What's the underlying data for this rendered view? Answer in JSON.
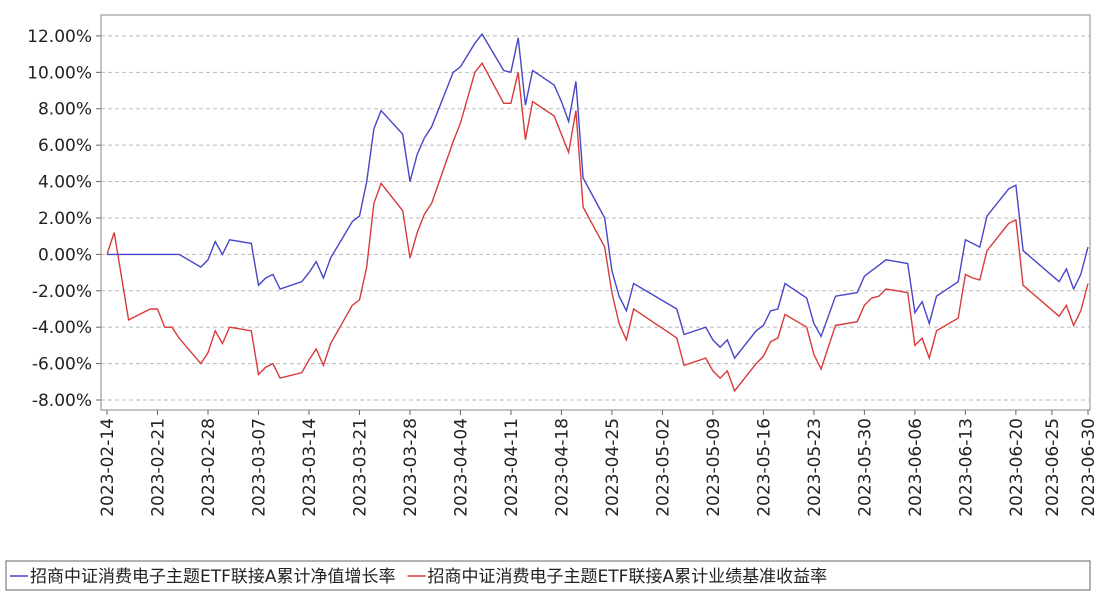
{
  "chart_data": {
    "type": "line",
    "x": [
      "2023-02-14",
      "2023-02-15",
      "2023-02-16",
      "2023-02-17",
      "2023-02-20",
      "2023-02-21",
      "2023-02-22",
      "2023-02-23",
      "2023-02-24",
      "2023-02-27",
      "2023-02-28",
      "2023-03-01",
      "2023-03-02",
      "2023-03-03",
      "2023-03-06",
      "2023-03-07",
      "2023-03-08",
      "2023-03-09",
      "2023-03-10",
      "2023-03-13",
      "2023-03-14",
      "2023-03-15",
      "2023-03-16",
      "2023-03-17",
      "2023-03-20",
      "2023-03-21",
      "2023-03-22",
      "2023-03-23",
      "2023-03-24",
      "2023-03-27",
      "2023-03-28",
      "2023-03-29",
      "2023-03-30",
      "2023-03-31",
      "2023-04-03",
      "2023-04-04",
      "2023-04-06",
      "2023-04-07",
      "2023-04-10",
      "2023-04-11",
      "2023-04-12",
      "2023-04-13",
      "2023-04-14",
      "2023-04-17",
      "2023-04-18",
      "2023-04-19",
      "2023-04-20",
      "2023-04-21",
      "2023-04-24",
      "2023-04-25",
      "2023-04-26",
      "2023-04-27",
      "2023-04-28",
      "2023-05-04",
      "2023-05-05",
      "2023-05-08",
      "2023-05-09",
      "2023-05-10",
      "2023-05-11",
      "2023-05-12",
      "2023-05-15",
      "2023-05-16",
      "2023-05-17",
      "2023-05-18",
      "2023-05-19",
      "2023-05-22",
      "2023-05-23",
      "2023-05-24",
      "2023-05-25",
      "2023-05-26",
      "2023-05-29",
      "2023-05-30",
      "2023-05-31",
      "2023-06-01",
      "2023-06-02",
      "2023-06-05",
      "2023-06-06",
      "2023-06-07",
      "2023-06-08",
      "2023-06-09",
      "2023-06-12",
      "2023-06-13",
      "2023-06-14",
      "2023-06-15",
      "2023-06-16",
      "2023-06-19",
      "2023-06-20",
      "2023-06-21",
      "2023-06-26",
      "2023-06-27",
      "2023-06-28",
      "2023-06-29",
      "2023-06-30"
    ],
    "series": [
      {
        "name": "招商中证消费电子主题ETF联接A累计净值增长率",
        "color": "#4646c8",
        "values": [
          0,
          0,
          0,
          0,
          0,
          0,
          0,
          0,
          0,
          -0.7,
          -0.3,
          0.7,
          0,
          0.8,
          0.6,
          -1.7,
          -1.3,
          -1.1,
          -1.9,
          -1.5,
          -1.0,
          -0.4,
          -1.3,
          -0.2,
          1.8,
          2.1,
          4.0,
          6.9,
          7.9,
          6.6,
          4.0,
          5.5,
          6.4,
          7.0,
          10.0,
          10.3,
          11.6,
          12.1,
          10.1,
          10.0,
          11.9,
          8.2,
          10.1,
          9.3,
          8.4,
          7.3,
          9.5,
          4.2,
          2.0,
          -0.9,
          -2.3,
          -3.1,
          -1.6,
          -3.0,
          -4.4,
          -4.0,
          -4.7,
          -5.1,
          -4.7,
          -5.7,
          -4.2,
          -3.9,
          -3.1,
          -3.0,
          -1.6,
          -2.4,
          -3.8,
          -4.5,
          -3.4,
          -2.3,
          -2.1,
          -1.2,
          -0.9,
          -0.6,
          -0.3,
          -0.5,
          -3.2,
          -2.6,
          -3.8,
          -2.3,
          -1.5,
          0.8,
          0.6,
          0.4,
          2.1,
          3.6,
          3.8,
          0.2,
          -1.5,
          -0.8,
          -1.9,
          -1.1,
          0.4
        ]
      },
      {
        "name": "招商中证消费电子主题ETF联接A累计业绩基准收益率",
        "color": "#d93a3a",
        "values": [
          0,
          1.2,
          -1.2,
          -3.6,
          -3.0,
          -3.0,
          -4.0,
          -4.0,
          -4.6,
          -6.0,
          -5.4,
          -4.2,
          -4.9,
          -4.0,
          -4.2,
          -6.6,
          -6.2,
          -6.0,
          -6.8,
          -6.5,
          -5.8,
          -5.2,
          -6.1,
          -4.9,
          -2.8,
          -2.5,
          -0.7,
          2.8,
          3.9,
          2.4,
          -0.2,
          1.2,
          2.2,
          2.8,
          6.2,
          7.2,
          10.0,
          10.5,
          8.3,
          8.3,
          10.0,
          6.3,
          8.4,
          7.6,
          6.6,
          5.6,
          7.9,
          2.6,
          0.4,
          -2.1,
          -3.8,
          -4.7,
          -3.0,
          -4.6,
          -6.1,
          -5.7,
          -6.4,
          -6.8,
          -6.4,
          -7.5,
          -6.0,
          -5.6,
          -4.8,
          -4.6,
          -3.3,
          -4.0,
          -5.5,
          -6.3,
          -5.1,
          -3.9,
          -3.7,
          -2.8,
          -2.4,
          -2.3,
          -1.9,
          -2.1,
          -5.0,
          -4.6,
          -5.7,
          -4.2,
          -3.5,
          -1.1,
          -1.3,
          -1.4,
          0.2,
          1.7,
          1.9,
          -1.7,
          -3.4,
          -2.8,
          -3.9,
          -3.1,
          -1.6
        ]
      }
    ],
    "xlim": [
      "2023-02-14",
      "2023-06-30"
    ],
    "xticks": [
      "2023-02-14",
      "2023-02-21",
      "2023-02-28",
      "2023-03-07",
      "2023-03-14",
      "2023-03-21",
      "2023-03-28",
      "2023-04-04",
      "2023-04-11",
      "2023-04-18",
      "2023-04-25",
      "2023-05-02",
      "2023-05-09",
      "2023-05-16",
      "2023-05-23",
      "2023-05-30",
      "2023-06-06",
      "2023-06-13",
      "2023-06-20",
      "2023-06-25",
      "2023-06-30"
    ],
    "ylim": [
      -8.55,
      13.15
    ],
    "yticks": [
      {
        "value": -8,
        "label": "-8.00%"
      },
      {
        "value": -6,
        "label": "-6.00%"
      },
      {
        "value": -4,
        "label": "-4.00%"
      },
      {
        "value": -2,
        "label": "-2.00%"
      },
      {
        "value": 0,
        "label": "0.00%"
      },
      {
        "value": 2,
        "label": "2.00%"
      },
      {
        "value": 4,
        "label": "4.00%"
      },
      {
        "value": 6,
        "label": "6.00%"
      },
      {
        "value": 8,
        "label": "8.00%"
      },
      {
        "value": 10,
        "label": "10.00%"
      },
      {
        "value": 12,
        "label": "12.00%"
      }
    ],
    "grid": true
  }
}
